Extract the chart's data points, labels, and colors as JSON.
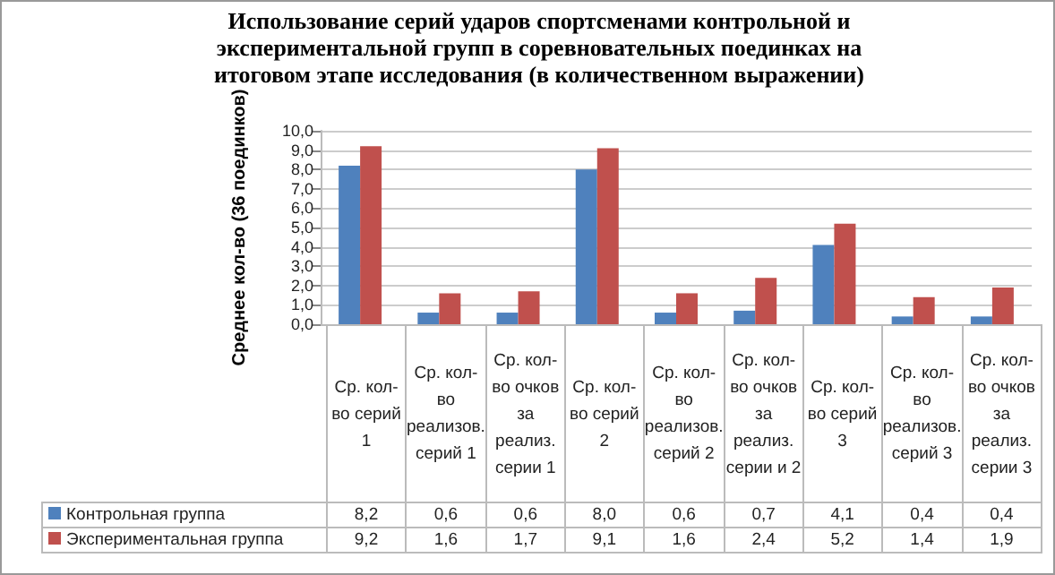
{
  "chart_data": {
    "type": "bar",
    "title": "Использование серий ударов спортсменами контрольной и экспериментальной групп в соревновательных поединках на итоговом этапе исследования (в количественном выражении)",
    "ylabel": "Среднее кол-во (36 поединков)",
    "categories": [
      "Ср. кол-во серий 1",
      "Ср. кол-во реализов. серий 1",
      "Ср. кол-во очков за реализ. серии 1",
      "Ср. кол-во серий 2",
      "Ср. кол-во реализов. серий 2",
      "Ср. кол-во очков за реализ. серии и 2",
      "Ср. кол-во серий 3",
      "Ср. кол-во реализов. серий 3",
      "Ср. кол-во очков за реализ. серии 3"
    ],
    "series": [
      {
        "name": "Контрольная группа",
        "color": "#4f81bd",
        "values": [
          8.2,
          0.6,
          0.6,
          8.0,
          0.6,
          0.7,
          4.1,
          0.4,
          0.4
        ],
        "value_labels": [
          "8,2",
          "0,6",
          "0,6",
          "8,0",
          "0,6",
          "0,7",
          "4,1",
          "0,4",
          "0,4"
        ]
      },
      {
        "name": "Экспериментальная группа",
        "color": "#c0504d",
        "values": [
          9.2,
          1.6,
          1.7,
          9.1,
          1.6,
          2.4,
          5.2,
          1.4,
          1.9
        ],
        "value_labels": [
          "9,2",
          "1,6",
          "1,7",
          "9,1",
          "1,6",
          "2,4",
          "5,2",
          "1,4",
          "1,9"
        ]
      }
    ],
    "ylim": [
      0,
      10
    ],
    "yticks": [
      {
        "value": 0,
        "label": "0,0"
      },
      {
        "value": 1,
        "label": "1,0"
      },
      {
        "value": 2,
        "label": "2,0"
      },
      {
        "value": 3,
        "label": "3,0"
      },
      {
        "value": 4,
        "label": "4,0"
      },
      {
        "value": 5,
        "label": "5,0"
      },
      {
        "value": 6,
        "label": "6,0"
      },
      {
        "value": 7,
        "label": "7,0"
      },
      {
        "value": 8,
        "label": "8,0"
      },
      {
        "value": 9,
        "label": "9,0"
      },
      {
        "value": 10,
        "label": "10,0"
      }
    ],
    "grid": "y",
    "legend": "bottom left"
  }
}
